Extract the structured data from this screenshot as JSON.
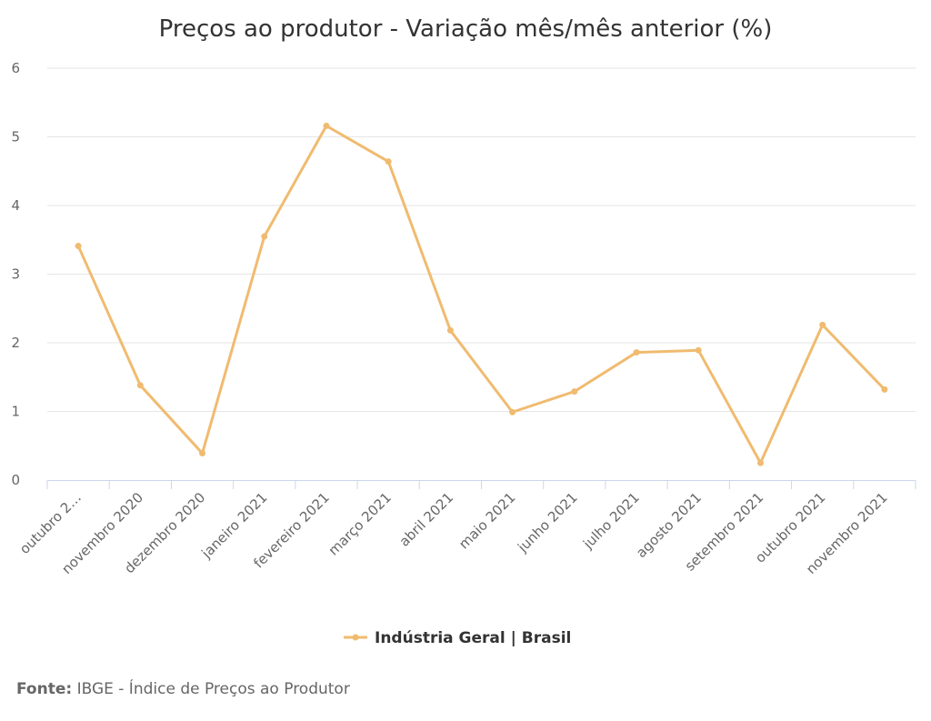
{
  "chart_data": {
    "type": "line",
    "title": "Preços ao produtor - Variação mês/mês anterior (%)",
    "categories": [
      "outubro 2…",
      "novembro 2020",
      "dezembro 2020",
      "janeiro 2021",
      "fevereiro 2021",
      "março 2021",
      "abril 2021",
      "maio 2021",
      "junho 2021",
      "julho 2021",
      "agosto 2021",
      "setembro 2021",
      "outubro 2021",
      "novembro 2021"
    ],
    "series": [
      {
        "name": "Indústria Geral | Brasil",
        "values": [
          3.41,
          1.38,
          0.39,
          3.55,
          5.16,
          4.64,
          2.18,
          0.99,
          1.29,
          1.86,
          1.89,
          0.25,
          2.26,
          1.32
        ],
        "color": "#f0bb70"
      }
    ],
    "y_ticks": [
      "0",
      "1",
      "2",
      "3",
      "4",
      "5",
      "6"
    ],
    "ylim": [
      0,
      6
    ],
    "grid": true,
    "legend_position": "bottom-center"
  },
  "source": {
    "label": "Fonte:",
    "text": "IBGE - Índice de Preços ao Produtor"
  }
}
